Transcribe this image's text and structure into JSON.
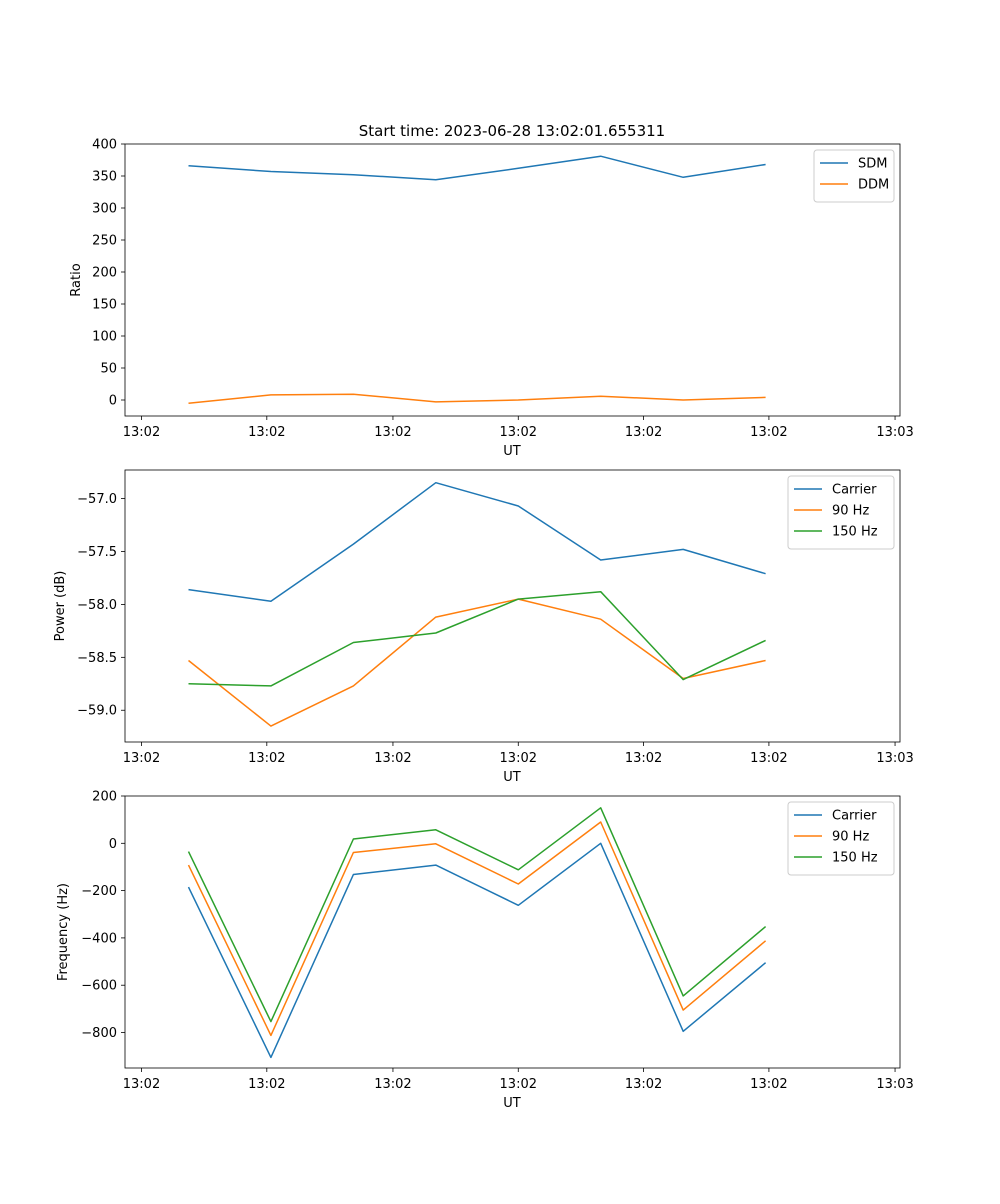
{
  "page_title": "Start time: 2023-06-28 13:02:01.655311",
  "chart_data": [
    {
      "type": "line",
      "ylabel": "Ratio",
      "xlabel": "UT",
      "x": [
        1,
        2,
        3,
        4,
        5,
        6,
        7,
        8
      ],
      "xlim": [
        0.23,
        9.63
      ],
      "xticks": [
        0.43,
        1.95,
        3.48,
        5.0,
        6.52,
        8.04,
        9.57
      ],
      "xticklabels": [
        "13:02",
        "13:02",
        "13:02",
        "13:02",
        "13:02",
        "13:02",
        "13:03"
      ],
      "ylim": [
        -25,
        400
      ],
      "yticks": [
        0,
        50,
        100,
        150,
        200,
        250,
        300,
        350,
        400
      ],
      "yticklabels": [
        "0",
        "50",
        "100",
        "150",
        "200",
        "250",
        "300",
        "350",
        "400"
      ],
      "legend": "top-right",
      "series": [
        {
          "name": "SDM",
          "color": "#1f77b4",
          "values": [
            366,
            357,
            352,
            344,
            362,
            381,
            348,
            368
          ]
        },
        {
          "name": "DDM",
          "color": "#ff7f0e",
          "values": [
            -5,
            8,
            9,
            -3,
            0,
            6,
            0,
            4
          ]
        }
      ]
    },
    {
      "type": "line",
      "ylabel": "Power (dB)",
      "xlabel": "UT",
      "x": [
        1,
        2,
        3,
        4,
        5,
        6,
        7,
        8
      ],
      "xlim": [
        0.23,
        9.63
      ],
      "xticks": [
        0.43,
        1.95,
        3.48,
        5.0,
        6.52,
        8.04,
        9.57
      ],
      "xticklabels": [
        "13:02",
        "13:02",
        "13:02",
        "13:02",
        "13:02",
        "13:02",
        "13:03"
      ],
      "ylim": [
        -59.3,
        -56.73
      ],
      "yticks": [
        -59.0,
        -58.5,
        -58.0,
        -57.5,
        -57.0
      ],
      "yticklabels": [
        "−59.0",
        "−58.5",
        "−58.0",
        "−57.5",
        "−57.0"
      ],
      "legend": "top-right",
      "series": [
        {
          "name": "Carrier",
          "color": "#1f77b4",
          "values": [
            -57.86,
            -57.97,
            -57.43,
            -56.85,
            -57.07,
            -57.58,
            -57.48,
            -57.71
          ]
        },
        {
          "name": "90 Hz",
          "color": "#ff7f0e",
          "values": [
            -58.53,
            -59.15,
            -58.77,
            -58.12,
            -57.95,
            -58.14,
            -58.7,
            -58.53
          ]
        },
        {
          "name": "150 Hz",
          "color": "#2ca02c",
          "values": [
            -58.75,
            -58.77,
            -58.36,
            -58.27,
            -57.95,
            -57.88,
            -58.71,
            -58.34
          ]
        }
      ]
    },
    {
      "type": "line",
      "ylabel": "Frequency (Hz)",
      "xlabel": "UT",
      "x": [
        1,
        2,
        3,
        4,
        5,
        6,
        7,
        8
      ],
      "xlim": [
        0.23,
        9.63
      ],
      "xticks": [
        0.43,
        1.95,
        3.48,
        5.0,
        6.52,
        8.04,
        9.57
      ],
      "xticklabels": [
        "13:02",
        "13:02",
        "13:02",
        "13:02",
        "13:02",
        "13:02",
        "13:03"
      ],
      "ylim": [
        -950,
        200
      ],
      "yticks": [
        -800,
        -600,
        -400,
        -200,
        0,
        200
      ],
      "yticklabels": [
        "−800",
        "−600",
        "−400",
        "−200",
        "0",
        "200"
      ],
      "legend": "top-right",
      "series": [
        {
          "name": "Carrier",
          "color": "#1f77b4",
          "values": [
            -185,
            -905,
            -132,
            -92,
            -262,
            0,
            -795,
            -505
          ]
        },
        {
          "name": "90 Hz",
          "color": "#ff7f0e",
          "values": [
            -92,
            -812,
            -39,
            -2,
            -172,
            90,
            -705,
            -412
          ]
        },
        {
          "name": "150 Hz",
          "color": "#2ca02c",
          "values": [
            -35,
            -754,
            18,
            57,
            -112,
            150,
            -645,
            -352
          ]
        }
      ]
    }
  ]
}
